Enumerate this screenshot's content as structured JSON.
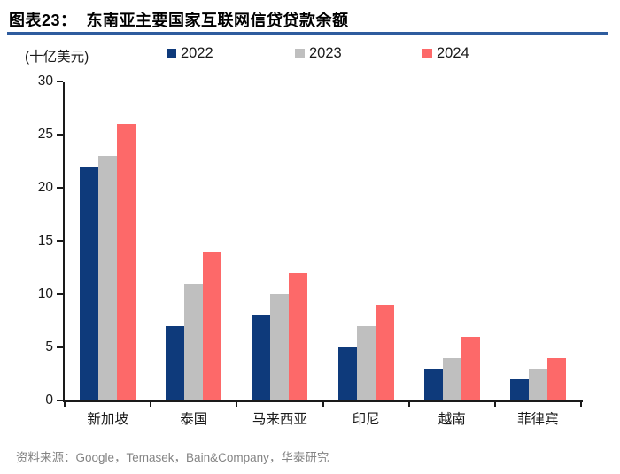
{
  "header": {
    "figure_label": "图表23：",
    "title": "图表23：  东南亚主要国家互联网信贷贷款余额",
    "underline_color": "#2e5c9e"
  },
  "chart_data": {
    "type": "bar",
    "title": "东南亚主要国家互联网信贷贷款余额",
    "unit_label": "(十亿美元)",
    "categories": [
      "新加坡",
      "泰国",
      "马来西亚",
      "印尼",
      "越南",
      "菲律宾"
    ],
    "series": [
      {
        "name": "2022",
        "color": "#0e3a7b",
        "values": [
          22,
          7,
          8,
          5,
          3,
          2
        ]
      },
      {
        "name": "2023",
        "color": "#bfbfbf",
        "values": [
          23,
          11,
          10,
          7,
          4,
          3
        ]
      },
      {
        "name": "2024",
        "color": "#fd6969",
        "values": [
          26,
          14,
          12,
          9,
          6,
          4
        ]
      }
    ],
    "ylim": [
      0,
      30
    ],
    "yticks": [
      0,
      5,
      10,
      15,
      20,
      25,
      30
    ],
    "grid": false,
    "legend_position": "top",
    "axis_color": "#1a1a1a"
  },
  "footer": {
    "source": "资料来源：Google，Temasek，Bain&Company，华泰研究",
    "separator_color": "#7e9bc0"
  }
}
